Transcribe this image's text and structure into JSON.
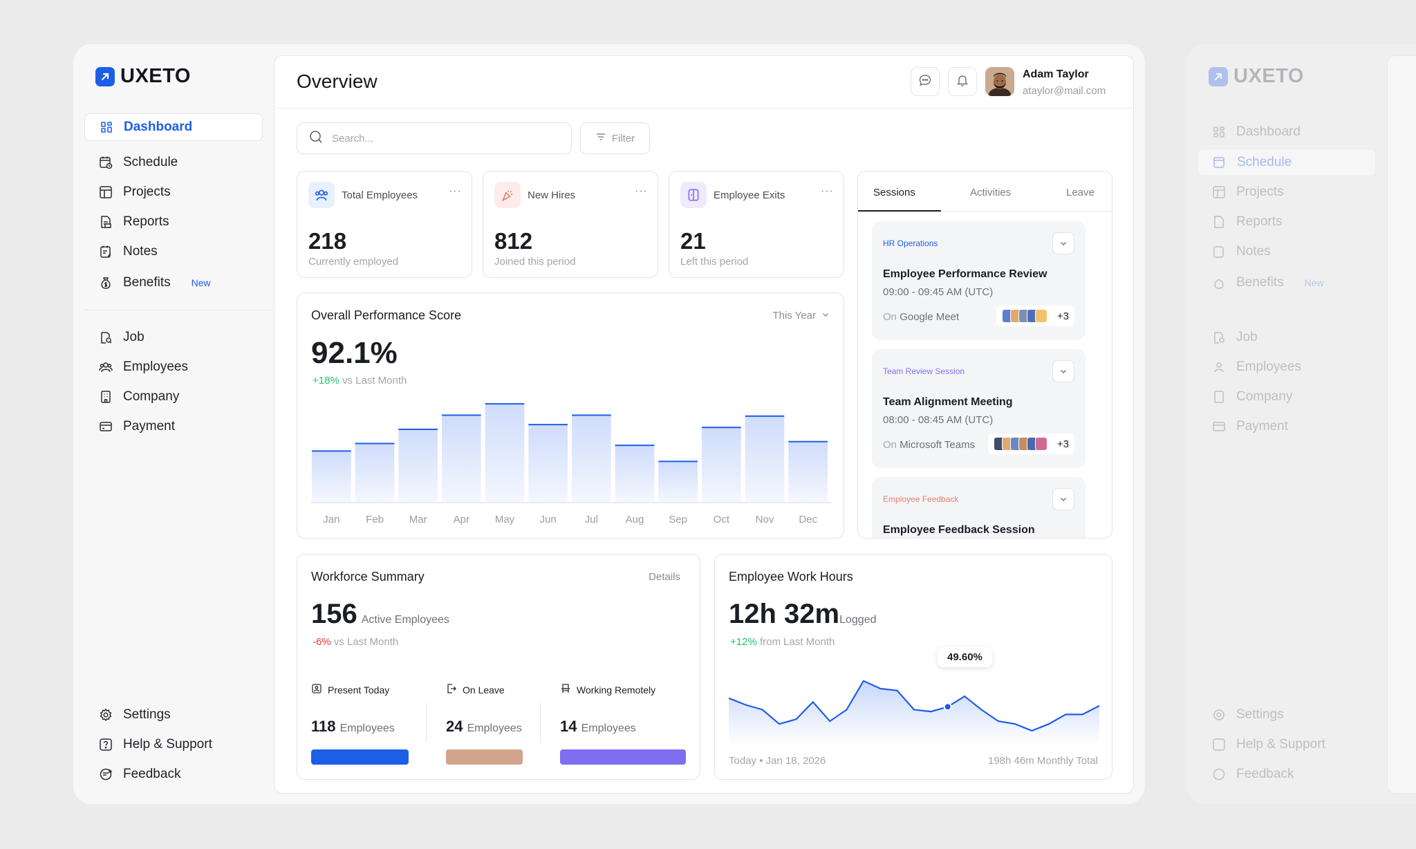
{
  "app": {
    "name": "UXETO"
  },
  "sidebar": {
    "items": [
      {
        "label": "Dashboard"
      },
      {
        "label": "Schedule"
      },
      {
        "label": "Projects"
      },
      {
        "label": "Reports"
      },
      {
        "label": "Notes"
      },
      {
        "label": "Benefits",
        "badge": "New"
      },
      {
        "label": "Job"
      },
      {
        "label": "Employees"
      },
      {
        "label": "Company"
      },
      {
        "label": "Payment"
      }
    ],
    "bottom": [
      {
        "label": "Settings"
      },
      {
        "label": "Help & Support"
      },
      {
        "label": "Feedback"
      }
    ]
  },
  "header": {
    "title": "Overview",
    "user": {
      "name": "Adam Taylor",
      "email": "ataylor@mail.com"
    }
  },
  "toolbar": {
    "search_placeholder": "Search...",
    "filter_label": "Filter"
  },
  "stats": [
    {
      "label": "Total Employees",
      "value": "218",
      "sub": "Currently employed",
      "more": "···"
    },
    {
      "label": "New Hires",
      "value": "812",
      "sub": "Joined this period",
      "more": "···"
    },
    {
      "label": "Employee Exits",
      "value": "21",
      "sub": "Left this period",
      "more": "···"
    }
  ],
  "performance": {
    "title": "Overall Performance Score",
    "period": "This Year",
    "value": "92.1%",
    "change": "+18%",
    "change_suffix": "vs Last Month"
  },
  "sessions_panel": {
    "tabs": [
      "Sessions",
      "Activities",
      "Leave"
    ],
    "sessions": [
      {
        "tag": "HR Operations",
        "title": "Employee Performance Review",
        "time": "09:00 - 09:45 AM (UTC)",
        "on": "On",
        "platform": "Google Meet",
        "more": "+3"
      },
      {
        "tag": "Team Review Session",
        "title": "Team Alignment Meeting",
        "time": "08:00 - 08:45 AM (UTC)",
        "on": "On",
        "platform": "Microsoft Teams",
        "more": "+3"
      },
      {
        "tag": "Employee Feedback",
        "title": "Employee Feedback Session"
      }
    ]
  },
  "workforce": {
    "title": "Workforce Summary",
    "details": "Details",
    "value": "156",
    "value_label": "Active Employees",
    "change": "-6%",
    "change_suffix": "vs Last Month",
    "columns": [
      {
        "label": "Present Today",
        "count": "118",
        "unit": "Employees",
        "color": "#1d5ee8",
        "share": 0.47
      },
      {
        "label": "On Leave",
        "count": "24",
        "unit": "Employees",
        "color": "#d2a48c",
        "share": 0.12
      },
      {
        "label": "Working Remotely",
        "count": "14",
        "unit": "Employees",
        "color": "#7f6ff0",
        "share": 0.41
      }
    ]
  },
  "work_hours": {
    "title": "Employee Work Hours",
    "value": "12h 32m",
    "value_label": "Logged",
    "change": "+12%",
    "change_suffix": "from Last Month",
    "tooltip": "49.60%",
    "foot_left": "Today • Jan 18, 2026",
    "foot_right": "198h 46m Monthly Total",
    "points": [
      42,
      35,
      30,
      15,
      20,
      38,
      18,
      30,
      60,
      52,
      50,
      30,
      28,
      33,
      44,
      30,
      18,
      15,
      8,
      15,
      25,
      25,
      34
    ],
    "highlight_index": 13
  },
  "chart_data": {
    "type": "bar",
    "title": "Overall Performance Score",
    "categories": [
      "Jan",
      "Feb",
      "Mar",
      "Apr",
      "May",
      "Jun",
      "Jul",
      "Aug",
      "Sep",
      "Oct",
      "Nov",
      "Dec"
    ],
    "values": [
      54,
      62,
      77,
      92,
      104,
      82,
      92,
      60,
      43,
      79,
      91,
      64
    ],
    "xlabel": "",
    "ylabel": "",
    "ylim": [
      0,
      110
    ]
  },
  "colors": {
    "accent": "#1d5ee8",
    "positive": "#1ec46b",
    "negative": "#e33b3b"
  }
}
